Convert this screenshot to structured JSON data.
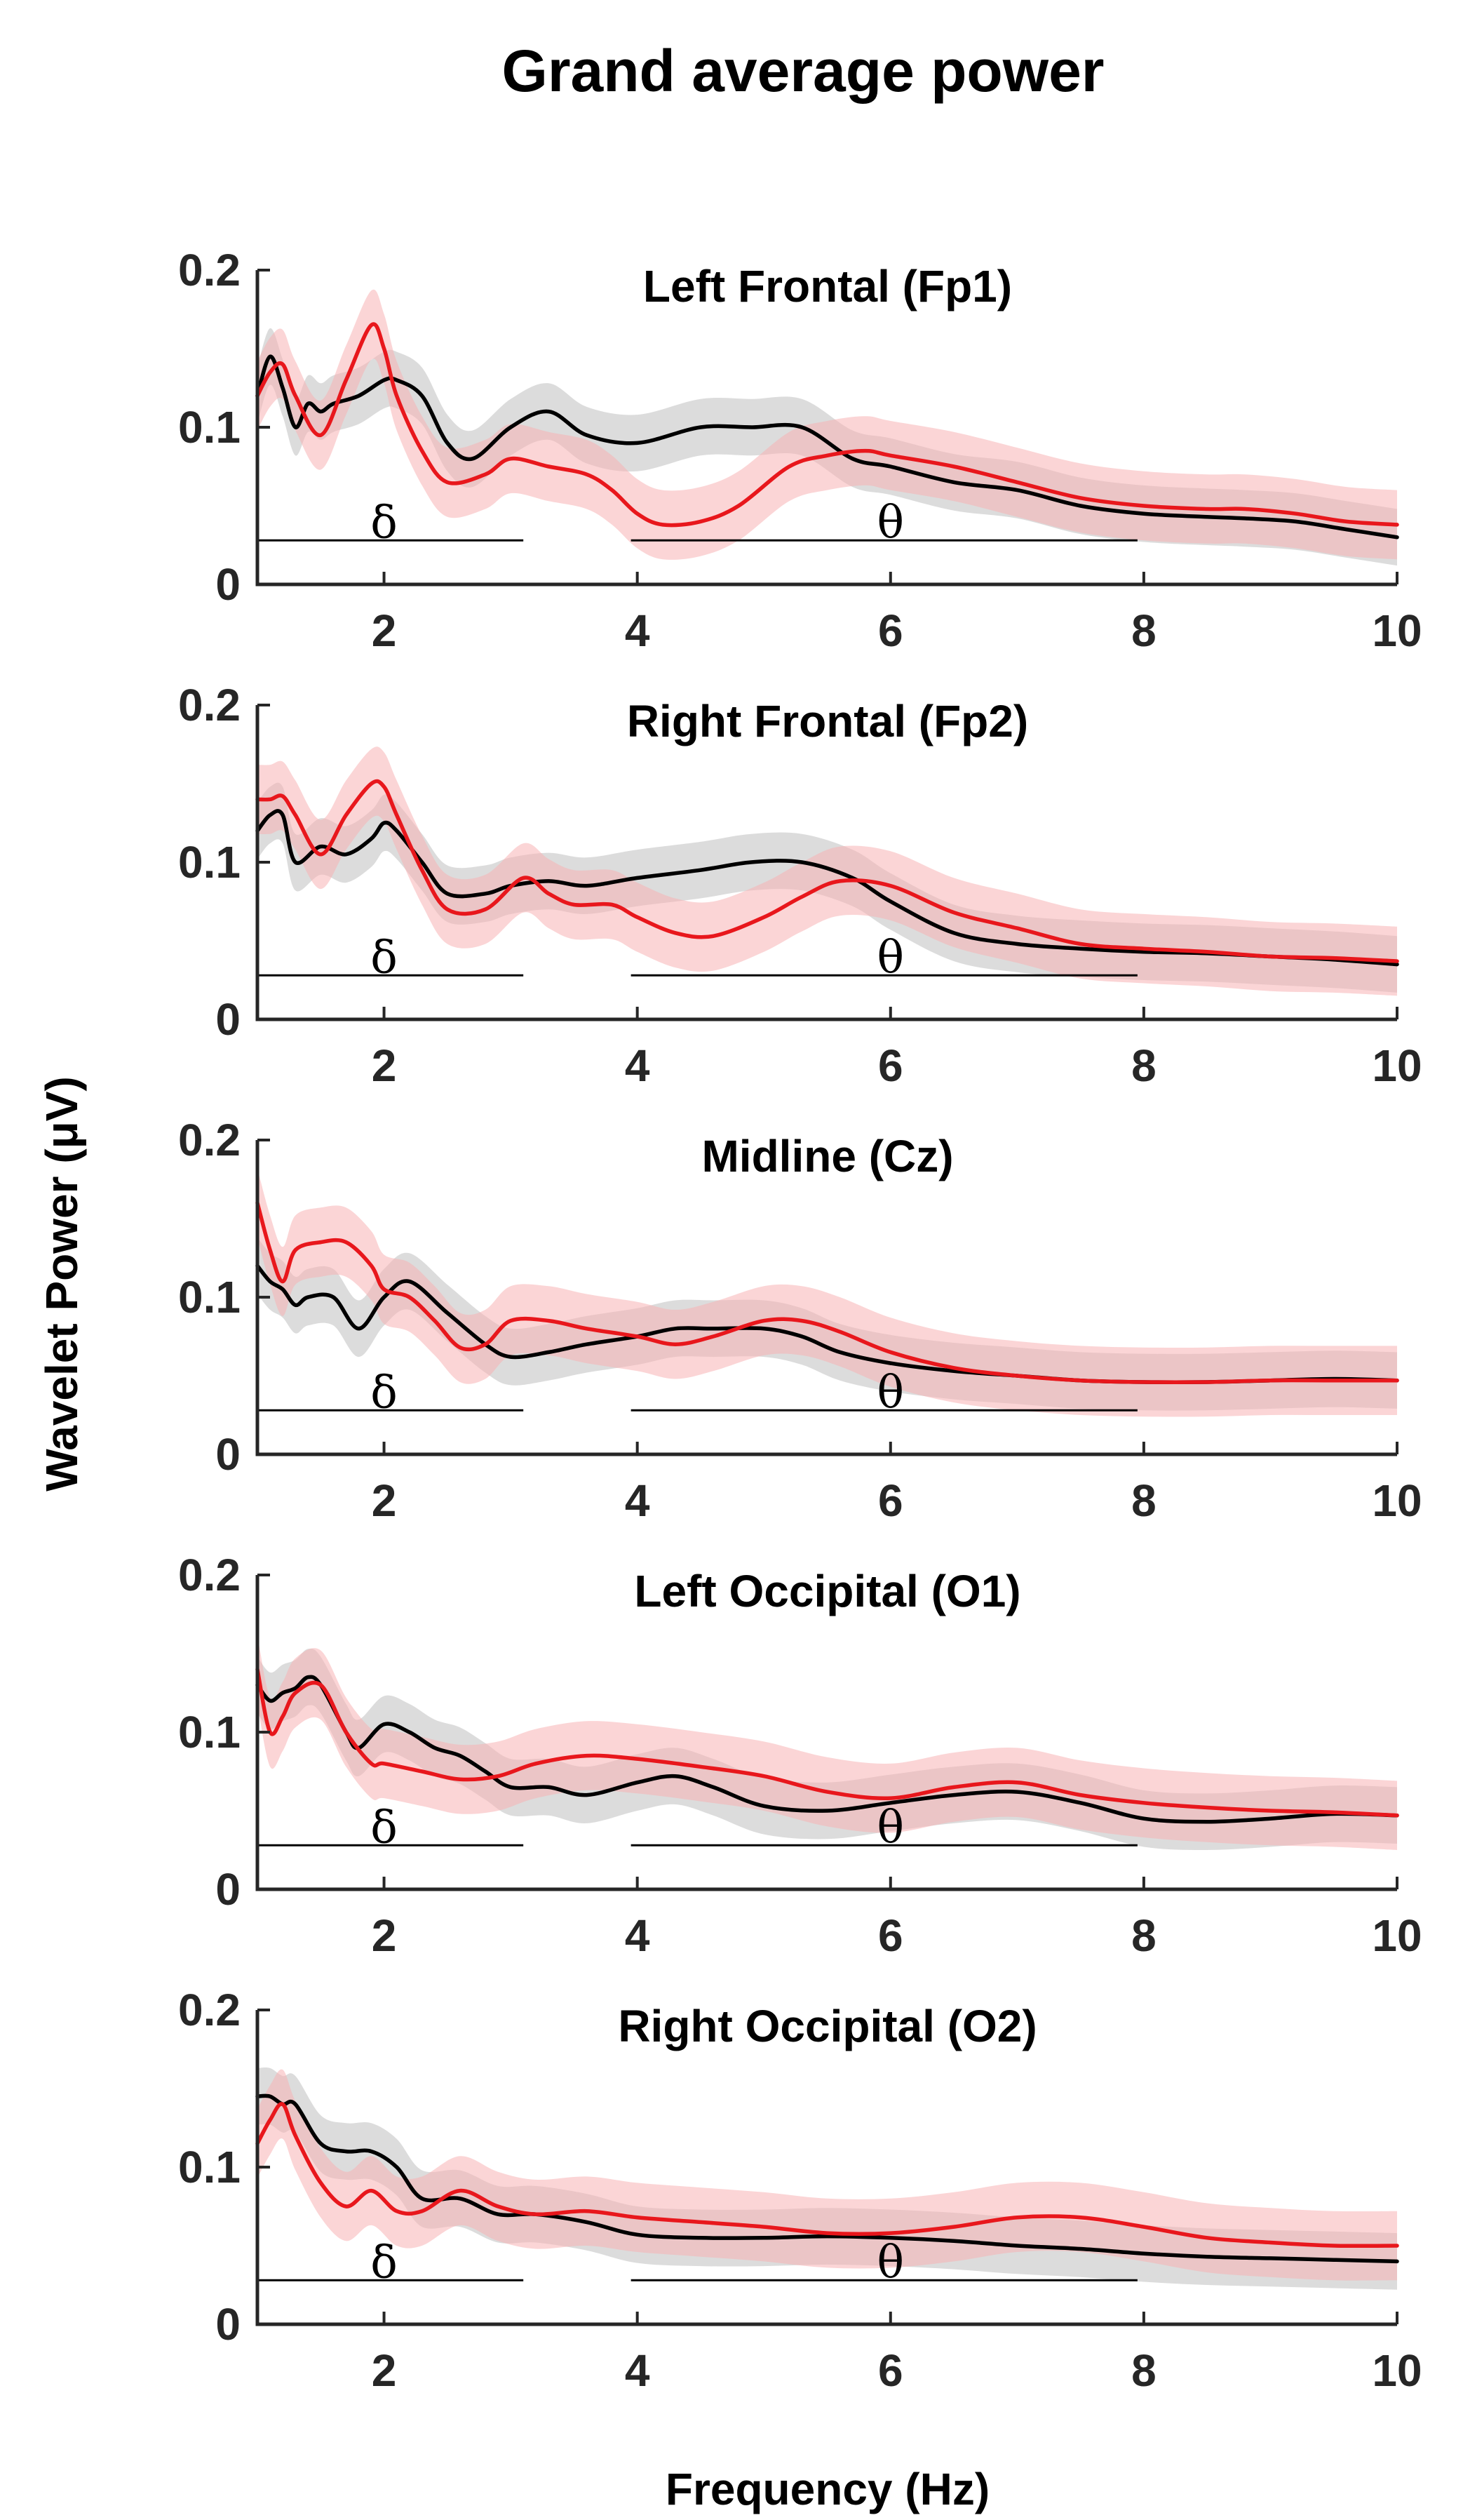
{
  "chart_data": {
    "type": "line",
    "title": "Grand average power",
    "xlabel": "Frequency (Hz)",
    "ylabel": "Wavelet Power (μV)",
    "xlim": [
      1,
      10
    ],
    "ylim": [
      0,
      0.2
    ],
    "xticks": [
      2,
      4,
      6,
      8,
      10
    ],
    "yticks": [
      0,
      0.1,
      0.2
    ],
    "xtick_labels": [
      "2",
      "4",
      "6",
      "8",
      "10"
    ],
    "ytick_labels": [
      "0",
      "0.1",
      "0.2"
    ],
    "colors": {
      "black": "#000000",
      "red": "#e8171c",
      "black_band": "#bfbfbf",
      "red_band": "#f7b3b5",
      "axis": "#262626"
    },
    "bands": [
      {
        "label": "δ",
        "x": [
          1,
          3.1
        ],
        "y": 0.028,
        "label_x": 2
      },
      {
        "label": "θ",
        "x": [
          3.95,
          7.95
        ],
        "y": 0.028,
        "label_x": 6
      }
    ],
    "panels": [
      {
        "title": "Left Frontal (Fp1)",
        "series": [
          {
            "name": "black",
            "sem": 0.018,
            "x": [
              1.0,
              1.1,
              1.2,
              1.3,
              1.4,
              1.5,
              1.6,
              1.8,
              2.0,
              2.1,
              2.3,
              2.5,
              2.7,
              3.0,
              3.3,
              3.6,
              4.0,
              4.5,
              4.9,
              5.3,
              5.7,
              6.0,
              6.5,
              7.0,
              7.5,
              8.0,
              8.5,
              8.8,
              9.2,
              9.6,
              10.0
            ],
            "y": [
              0.12,
              0.145,
              0.125,
              0.1,
              0.115,
              0.11,
              0.115,
              0.12,
              0.13,
              0.13,
              0.12,
              0.09,
              0.08,
              0.1,
              0.11,
              0.095,
              0.09,
              0.1,
              0.1,
              0.1,
              0.08,
              0.075,
              0.065,
              0.06,
              0.05,
              0.045,
              0.043,
              0.042,
              0.04,
              0.035,
              0.03
            ]
          },
          {
            "name": "red",
            "sem": 0.022,
            "x": [
              1.0,
              1.1,
              1.2,
              1.3,
              1.5,
              1.7,
              1.9,
              2.0,
              2.1,
              2.3,
              2.5,
              2.8,
              3.0,
              3.3,
              3.6,
              3.8,
              4.0,
              4.2,
              4.5,
              4.8,
              5.2,
              5.5,
              5.8,
              6.0,
              6.5,
              7.0,
              7.5,
              8.0,
              8.5,
              8.8,
              9.2,
              9.6,
              10.0
            ],
            "y": [
              0.12,
              0.135,
              0.14,
              0.12,
              0.095,
              0.13,
              0.165,
              0.15,
              0.12,
              0.085,
              0.065,
              0.07,
              0.08,
              0.075,
              0.07,
              0.06,
              0.045,
              0.038,
              0.04,
              0.05,
              0.075,
              0.082,
              0.085,
              0.082,
              0.075,
              0.065,
              0.055,
              0.05,
              0.048,
              0.048,
              0.045,
              0.04,
              0.038
            ]
          }
        ]
      },
      {
        "title": "Right Frontal (Fp2)",
        "series": [
          {
            "name": "black",
            "sem": 0.018,
            "x": [
              1.0,
              1.1,
              1.2,
              1.3,
              1.5,
              1.7,
              1.9,
              2.0,
              2.1,
              2.3,
              2.5,
              2.8,
              3.0,
              3.3,
              3.6,
              4.0,
              4.5,
              4.9,
              5.3,
              5.7,
              6.0,
              6.5,
              7.0,
              7.5,
              8.0,
              8.5,
              9.0,
              9.5,
              10.0
            ],
            "y": [
              0.12,
              0.13,
              0.13,
              0.1,
              0.11,
              0.105,
              0.115,
              0.125,
              0.12,
              0.1,
              0.08,
              0.08,
              0.085,
              0.088,
              0.085,
              0.09,
              0.095,
              0.1,
              0.1,
              0.09,
              0.075,
              0.055,
              0.048,
              0.045,
              0.043,
              0.042,
              0.04,
              0.038,
              0.035
            ]
          },
          {
            "name": "red",
            "sem": 0.022,
            "x": [
              1.0,
              1.1,
              1.2,
              1.3,
              1.5,
              1.7,
              1.9,
              2.0,
              2.1,
              2.3,
              2.5,
              2.8,
              3.1,
              3.3,
              3.5,
              3.8,
              4.0,
              4.3,
              4.6,
              5.0,
              5.3,
              5.6,
              6.0,
              6.5,
              7.0,
              7.5,
              8.0,
              8.5,
              9.0,
              9.5,
              10.0
            ],
            "y": [
              0.14,
              0.14,
              0.142,
              0.13,
              0.105,
              0.13,
              0.15,
              0.148,
              0.13,
              0.095,
              0.07,
              0.07,
              0.09,
              0.08,
              0.073,
              0.073,
              0.065,
              0.055,
              0.053,
              0.065,
              0.078,
              0.088,
              0.085,
              0.068,
              0.058,
              0.048,
              0.045,
              0.043,
              0.04,
              0.039,
              0.037
            ]
          }
        ]
      },
      {
        "title": "Midline (Cz)",
        "series": [
          {
            "name": "black",
            "sem": 0.018,
            "x": [
              1.0,
              1.1,
              1.2,
              1.3,
              1.4,
              1.6,
              1.8,
              2.0,
              2.2,
              2.5,
              2.8,
              3.0,
              3.3,
              3.6,
              4.0,
              4.3,
              4.6,
              5.0,
              5.3,
              5.6,
              6.0,
              6.5,
              7.0,
              7.5,
              8.0,
              8.5,
              9.0,
              9.5,
              10.0
            ],
            "y": [
              0.12,
              0.11,
              0.105,
              0.095,
              0.1,
              0.1,
              0.08,
              0.1,
              0.11,
              0.09,
              0.07,
              0.062,
              0.065,
              0.07,
              0.075,
              0.08,
              0.08,
              0.08,
              0.075,
              0.065,
              0.058,
              0.053,
              0.05,
              0.047,
              0.046,
              0.046,
              0.047,
              0.048,
              0.047
            ]
          },
          {
            "name": "red",
            "sem": 0.022,
            "x": [
              1.0,
              1.1,
              1.2,
              1.3,
              1.5,
              1.7,
              1.9,
              2.0,
              2.2,
              2.4,
              2.6,
              2.8,
              3.0,
              3.3,
              3.6,
              4.0,
              4.3,
              4.6,
              5.0,
              5.3,
              5.6,
              6.0,
              6.5,
              7.0,
              7.5,
              8.0,
              8.5,
              9.0,
              9.5,
              10.0
            ],
            "y": [
              0.16,
              0.13,
              0.11,
              0.13,
              0.135,
              0.135,
              0.12,
              0.105,
              0.1,
              0.085,
              0.068,
              0.07,
              0.085,
              0.085,
              0.08,
              0.075,
              0.07,
              0.075,
              0.085,
              0.085,
              0.078,
              0.065,
              0.055,
              0.05,
              0.047,
              0.046,
              0.046,
              0.047,
              0.047,
              0.047
            ]
          }
        ]
      },
      {
        "title": "Left Occipital (O1)",
        "series": [
          {
            "name": "black",
            "sem": 0.018,
            "x": [
              1.0,
              1.1,
              1.2,
              1.3,
              1.4,
              1.5,
              1.7,
              1.8,
              2.0,
              2.2,
              2.4,
              2.6,
              2.8,
              3.0,
              3.3,
              3.6,
              4.0,
              4.3,
              4.6,
              5.0,
              5.5,
              6.0,
              6.5,
              7.0,
              7.5,
              8.0,
              8.5,
              9.0,
              9.5,
              10.0
            ],
            "y": [
              0.13,
              0.12,
              0.125,
              0.128,
              0.135,
              0.13,
              0.1,
              0.09,
              0.105,
              0.1,
              0.09,
              0.085,
              0.075,
              0.065,
              0.065,
              0.06,
              0.068,
              0.072,
              0.065,
              0.053,
              0.05,
              0.055,
              0.06,
              0.062,
              0.055,
              0.045,
              0.043,
              0.045,
              0.048,
              0.047
            ]
          },
          {
            "name": "red",
            "sem": 0.022,
            "x": [
              1.0,
              1.1,
              1.2,
              1.3,
              1.5,
              1.7,
              1.9,
              2.0,
              2.3,
              2.6,
              2.9,
              3.2,
              3.6,
              4.0,
              4.5,
              5.0,
              5.5,
              6.0,
              6.5,
              7.0,
              7.5,
              8.0,
              8.5,
              9.0,
              9.5,
              10.0
            ],
            "y": [
              0.14,
              0.1,
              0.11,
              0.125,
              0.13,
              0.1,
              0.08,
              0.08,
              0.075,
              0.07,
              0.072,
              0.08,
              0.085,
              0.083,
              0.078,
              0.072,
              0.062,
              0.058,
              0.065,
              0.068,
              0.06,
              0.055,
              0.052,
              0.05,
              0.049,
              0.047
            ]
          }
        ]
      },
      {
        "title": "Right Occipital (O2)",
        "series": [
          {
            "name": "black",
            "sem": 0.018,
            "x": [
              1.0,
              1.1,
              1.2,
              1.3,
              1.5,
              1.7,
              1.9,
              2.1,
              2.3,
              2.6,
              2.9,
              3.2,
              3.6,
              4.0,
              4.5,
              5.0,
              5.5,
              6.0,
              6.5,
              7.0,
              7.5,
              8.0,
              8.5,
              9.0,
              9.5,
              10.0
            ],
            "y": [
              0.145,
              0.145,
              0.14,
              0.14,
              0.115,
              0.11,
              0.11,
              0.1,
              0.08,
              0.08,
              0.07,
              0.07,
              0.065,
              0.057,
              0.055,
              0.055,
              0.056,
              0.055,
              0.053,
              0.05,
              0.048,
              0.045,
              0.043,
              0.042,
              0.041,
              0.04
            ]
          },
          {
            "name": "red",
            "sem": 0.022,
            "x": [
              1.0,
              1.1,
              1.2,
              1.3,
              1.5,
              1.7,
              1.9,
              2.1,
              2.3,
              2.6,
              2.9,
              3.2,
              3.6,
              4.0,
              4.5,
              5.0,
              5.5,
              6.0,
              6.5,
              7.0,
              7.5,
              8.0,
              8.5,
              9.0,
              9.5,
              10.0
            ],
            "y": [
              0.115,
              0.13,
              0.14,
              0.12,
              0.09,
              0.075,
              0.085,
              0.072,
              0.072,
              0.085,
              0.075,
              0.07,
              0.072,
              0.068,
              0.065,
              0.062,
              0.058,
              0.058,
              0.062,
              0.068,
              0.068,
              0.062,
              0.055,
              0.052,
              0.05,
              0.05
            ]
          }
        ]
      }
    ]
  }
}
